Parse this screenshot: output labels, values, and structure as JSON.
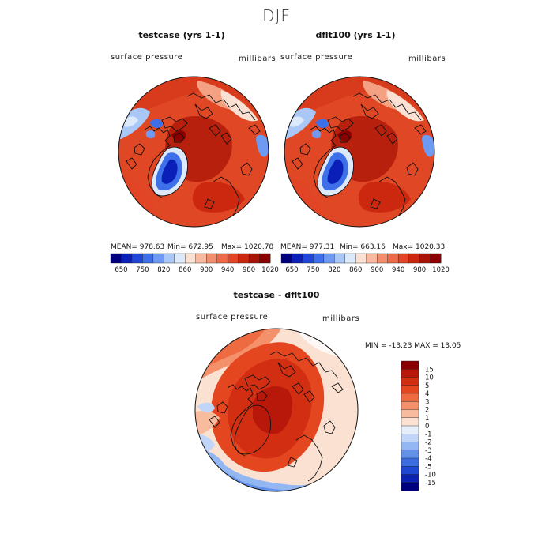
{
  "season": "DJF",
  "panels": [
    {
      "title": "testcase (yrs 1-1)",
      "variable": "surface pressure",
      "units": "millibars",
      "stats": {
        "mean": "MEAN= 978.63",
        "min": "Min= 672.95",
        "max": "Max= 1020.78"
      }
    },
    {
      "title": "dflt100 (yrs 1-1)",
      "variable": "surface pressure",
      "units": "millibars",
      "stats": {
        "mean": "MEAN= 977.31",
        "min": "Min= 663.16",
        "max": "Max= 1020.33"
      }
    }
  ],
  "diff_panel": {
    "title": "testcase - dflt100",
    "variable": "surface pressure",
    "units": "millibars",
    "stats": "MIN = -13.23 MAX =  13.05"
  },
  "chart_data": [
    {
      "type": "heatmap",
      "title": "testcase (yrs 1-1)",
      "projection": "north polar stereographic",
      "variable": "surface pressure",
      "units": "millibars",
      "mean": 978.63,
      "min": 672.95,
      "max": 1020.78,
      "colorbar_levels": [
        650,
        750,
        820,
        860,
        900,
        940,
        980,
        1020
      ]
    },
    {
      "type": "heatmap",
      "title": "dflt100 (yrs 1-1)",
      "projection": "north polar stereographic",
      "variable": "surface pressure",
      "units": "millibars",
      "mean": 977.31,
      "min": 663.16,
      "max": 1020.33,
      "colorbar_levels": [
        650,
        750,
        820,
        860,
        900,
        940,
        980,
        1020
      ]
    },
    {
      "type": "heatmap",
      "title": "testcase - dflt100",
      "projection": "north polar stereographic",
      "variable": "surface pressure",
      "units": "millibars",
      "min": -13.23,
      "max": 13.05,
      "colorbar_levels": [
        15,
        10,
        5,
        4,
        3,
        2,
        1,
        0,
        -1,
        -2,
        -3,
        -4,
        -5,
        -10,
        -15
      ]
    }
  ],
  "colorbar_top": {
    "tick_labels": [
      "650",
      "750",
      "820",
      "860",
      "900",
      "940",
      "980",
      "1020"
    ],
    "colors": [
      "#00007f",
      "#0a1fb8",
      "#1f46d9",
      "#3d6fe8",
      "#6f9af2",
      "#a9c7f7",
      "#dce9fa",
      "#fbe1d4",
      "#f8b9a0",
      "#f38f6f",
      "#ec6a47",
      "#e24426",
      "#cc2810",
      "#a81405",
      "#8a0000"
    ]
  },
  "colorbar_diff": {
    "tick_labels": [
      "15",
      "10",
      "5",
      "4",
      "3",
      "2",
      "1",
      "0",
      "-1",
      "-2",
      "-3",
      "-4",
      "-5",
      "-10",
      "-15"
    ],
    "colors": [
      "#8a0000",
      "#b8180a",
      "#d22e12",
      "#e4461f",
      "#ee6a40",
      "#f4916a",
      "#f8bb9d",
      "#fbe1d1",
      "#e6eefa",
      "#c0d5f7",
      "#93b7f2",
      "#6291ea",
      "#3b6ce0",
      "#1f48d2",
      "#0b22b3",
      "#00007f"
    ]
  }
}
